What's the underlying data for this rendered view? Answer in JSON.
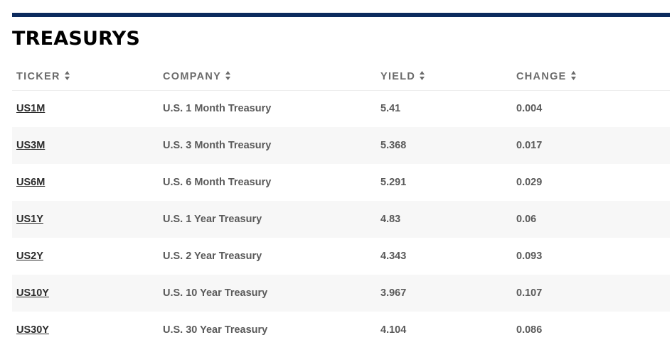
{
  "section": {
    "title": "TREASURYS"
  },
  "colors": {
    "accent_rule": "#0c2b5e",
    "row_stripe": "#f7f7f7"
  },
  "table": {
    "headers": [
      {
        "label": "TICKER",
        "sort_icon": "sort-arrows-icon"
      },
      {
        "label": "COMPANY",
        "sort_icon": "sort-arrows-icon"
      },
      {
        "label": "YIELD",
        "sort_icon": "sort-arrows-icon"
      },
      {
        "label": "CHANGE",
        "sort_icon": "sort-arrows-icon"
      }
    ],
    "rows": [
      {
        "ticker": "US1M",
        "company": "U.S. 1 Month Treasury",
        "yield": "5.41",
        "change": "0.004"
      },
      {
        "ticker": "US3M",
        "company": "U.S. 3 Month Treasury",
        "yield": "5.368",
        "change": "0.017"
      },
      {
        "ticker": "US6M",
        "company": "U.S. 6 Month Treasury",
        "yield": "5.291",
        "change": "0.029"
      },
      {
        "ticker": "US1Y",
        "company": "U.S. 1 Year Treasury",
        "yield": "4.83",
        "change": "0.06"
      },
      {
        "ticker": "US2Y",
        "company": "U.S. 2 Year Treasury",
        "yield": "4.343",
        "change": "0.093"
      },
      {
        "ticker": "US10Y",
        "company": "U.S. 10 Year Treasury",
        "yield": "3.967",
        "change": "0.107"
      },
      {
        "ticker": "US30Y",
        "company": "U.S. 30 Year Treasury",
        "yield": "4.104",
        "change": "0.086"
      }
    ]
  }
}
